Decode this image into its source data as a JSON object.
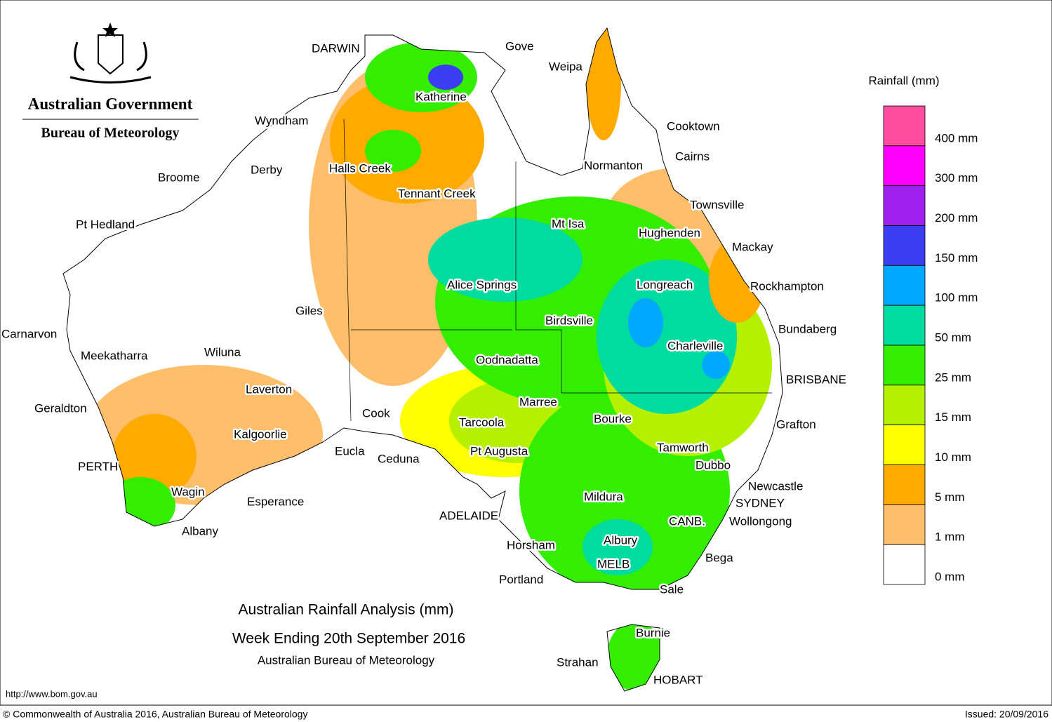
{
  "header": {
    "government": "Australian Government",
    "bureau": "Bureau of Meteorology"
  },
  "legend": {
    "title": "Rainfall (mm)",
    "labels": [
      "400 mm",
      "300 mm",
      "200 mm",
      "150 mm",
      "100 mm",
      "50 mm",
      "25 mm",
      "15 mm",
      "10 mm",
      "5 mm",
      "1 mm",
      "0 mm"
    ],
    "colors": [
      "#ff4da0",
      "#ff00ff",
      "#a020f0",
      "#3c3cf0",
      "#00a8ff",
      "#00dca0",
      "#33ee00",
      "#b4f000",
      "#ffff00",
      "#ffaa00",
      "#ffbe6a",
      "#ffffff"
    ]
  },
  "places": [
    "DARWIN",
    "Gove",
    "Weipa",
    "Katherine",
    "Wyndham",
    "Cooktown",
    "Cairns",
    "Normanton",
    "Derby",
    "Halls Creek",
    "Broome",
    "Tennant Creek",
    "Townsville",
    "Pt Hedland",
    "Mt Isa",
    "Hughenden",
    "Mackay",
    "Alice Springs",
    "Longreach",
    "Rockhampton",
    "Giles",
    "Birdsville",
    "Bundaberg",
    "Carnarvon",
    "Charleville",
    "Meekatharra",
    "Wiluna",
    "Oodnadatta",
    "BRISBANE",
    "Laverton",
    "Marree",
    "Geraldton",
    "Cook",
    "Bourke",
    "Tarcoola",
    "Grafton",
    "Kalgoorlie",
    "Tamworth",
    "Eucla",
    "Pt Augusta",
    "Ceduna",
    "Dubbo",
    "PERTH",
    "Newcastle",
    "Wagin",
    "Mildura",
    "Esperance",
    "SYDNEY",
    "ADELAIDE",
    "CANB.",
    "Wollongong",
    "Albany",
    "Albury",
    "Horsham",
    "Bega",
    "MELB",
    "Portland",
    "Sale",
    "Burnie",
    "Strahan",
    "HOBART"
  ],
  "title": {
    "line1": "Australian Rainfall Analysis (mm)",
    "line2": "Week Ending 20th September 2016",
    "line3": "Australian Bureau of Meteorology"
  },
  "footer": {
    "url": "http://www.bom.gov.au",
    "copyright": "© Commonwealth of Australia 2016, Australian Bureau of Meteorology",
    "issued": "Issued: 20/09/2016"
  }
}
